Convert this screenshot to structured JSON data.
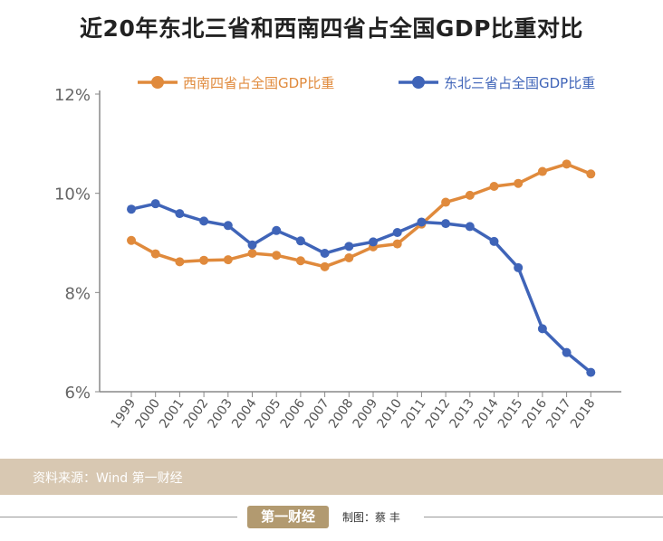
{
  "title": "近20年东北三省和西南四省占全国GDP比重对比",
  "chart_data": {
    "type": "line",
    "title": "近20年东北三省和西南四省占全国GDP比重对比",
    "categories": [
      "1999",
      "2000",
      "2001",
      "2002",
      "2003",
      "2004",
      "2005",
      "2006",
      "2007",
      "2008",
      "2009",
      "2010",
      "2011",
      "2012",
      "2013",
      "2014",
      "2015",
      "2016",
      "2017",
      "2018"
    ],
    "series": [
      {
        "name": "西南四省占全国GDP比重",
        "color": "#e08a3c",
        "values": [
          9.05,
          8.78,
          8.62,
          8.65,
          8.66,
          8.79,
          8.75,
          8.64,
          8.52,
          8.7,
          8.92,
          8.98,
          9.38,
          9.82,
          9.96,
          10.14,
          10.2,
          10.44,
          10.59,
          10.39
        ]
      },
      {
        "name": "东北三省占全国GDP比重",
        "color": "#3f64b8",
        "values": [
          9.68,
          9.79,
          9.59,
          9.44,
          9.35,
          8.96,
          9.25,
          9.04,
          8.79,
          8.93,
          9.02,
          9.21,
          9.42,
          9.39,
          9.33,
          9.03,
          8.5,
          7.27,
          6.79,
          6.39
        ]
      }
    ],
    "yticks": [
      "6%",
      "8%",
      "10%",
      "12%"
    ],
    "ylim": [
      6,
      12
    ],
    "unit": "%",
    "grid": false,
    "legend": "top"
  },
  "footer": {
    "source": "资料来源：Wind  第一财经",
    "logo_text": "第一财经",
    "credit": "制图：蔡 丰"
  }
}
